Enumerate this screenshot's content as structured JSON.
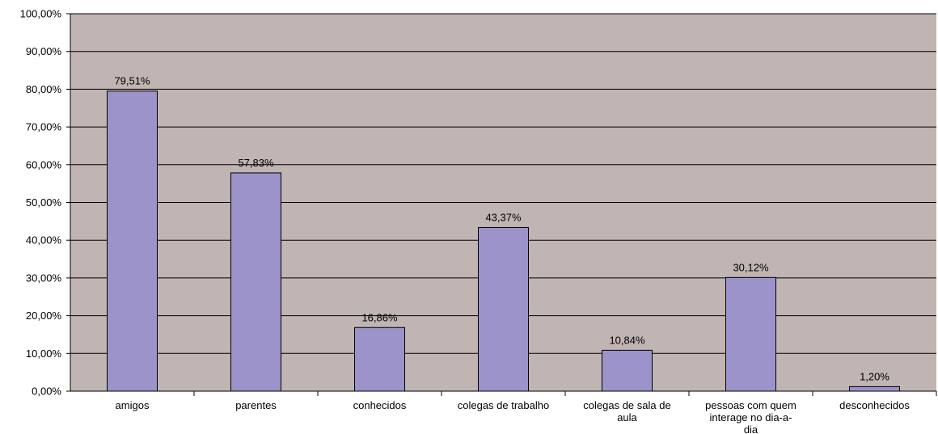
{
  "chart_data": {
    "type": "bar",
    "title": "",
    "xlabel": "",
    "ylabel": "",
    "ylim": [
      0,
      100
    ],
    "yticks": [
      "0,00%",
      "10,00%",
      "20,00%",
      "30,00%",
      "40,00%",
      "50,00%",
      "60,00%",
      "70,00%",
      "80,00%",
      "90,00%",
      "100,00%"
    ],
    "categories": [
      [
        "amigos"
      ],
      [
        "parentes"
      ],
      [
        "conhecidos"
      ],
      [
        "colegas de trabalho"
      ],
      [
        "colegas de sala de",
        "aula"
      ],
      [
        "pessoas com quem",
        "interage no dia-a-",
        "dia"
      ],
      [
        "desconhecidos"
      ]
    ],
    "values": [
      79.51,
      57.83,
      16.86,
      43.37,
      10.84,
      30.12,
      1.2
    ],
    "data_labels": [
      "79,51%",
      "57,83%",
      "16,86%",
      "43,37%",
      "10,84%",
      "30,12%",
      "1,20%"
    ],
    "grid": true,
    "legend": "none",
    "colors": {
      "plot_background": "#c0b5b2",
      "bar_fill": "#9b93c9",
      "bar_stroke": "#000000",
      "grid": "#000000"
    }
  }
}
